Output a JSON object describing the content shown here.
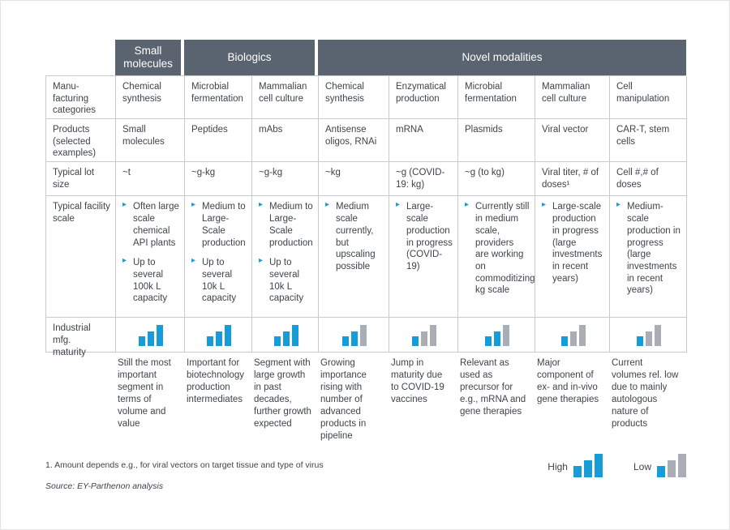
{
  "colors": {
    "header_bg": "#5a6470",
    "accent_blue": "#189cd8",
    "bar_gray": "#a9aeb4",
    "border": "#c6cbd1",
    "text": "#3d444c"
  },
  "icons": {
    "bullet": "▸"
  },
  "header_groups": [
    {
      "label": "Small molecules",
      "span": 1
    },
    {
      "label": "Biologics",
      "span": 2
    },
    {
      "label": "Novel modalities",
      "span": 5
    }
  ],
  "row_labels": {
    "categories": "Manu-\nfacturing\ncategories",
    "products": "Products\n(selected\nexamples)",
    "lot_size": "Typical lot\nsize",
    "facility": "Typical facility\nscale",
    "maturity": "Industrial mfg.\nmaturity"
  },
  "columns": [
    {
      "group": "Small molecules",
      "category": "Chemical synthesis",
      "product": "Small molecules",
      "lot_size": "~t",
      "facility": [
        "Often large scale chemical API plants",
        "Up to several 100k L capacity"
      ],
      "maturity_blue": 3,
      "maturity_total": 3,
      "summary": "Still the most important segment in terms of volume and value"
    },
    {
      "group": "Biologics",
      "category": "Microbial fermentation",
      "product": "Peptides",
      "lot_size": "~g-kg",
      "facility": [
        "Medium to Large-Scale production",
        "Up to several 10k L capacity"
      ],
      "maturity_blue": 3,
      "maturity_total": 3,
      "summary": "Important for biotechnology production intermediates"
    },
    {
      "group": "Biologics",
      "category": "Mammalian cell culture",
      "product": "mAbs",
      "lot_size": "~g-kg",
      "facility": [
        "Medium to Large-Scale production",
        "Up to several 10k L capacity"
      ],
      "maturity_blue": 3,
      "maturity_total": 3,
      "summary": "Segment with large growth in past decades, further growth expected"
    },
    {
      "group": "Novel modalities",
      "category": "Chemical synthesis",
      "product": "Antisense oligos, RNAi",
      "lot_size": "~kg",
      "facility": [
        "Medium scale currently, but upscaling possible"
      ],
      "maturity_blue": 2,
      "maturity_total": 3,
      "summary": "Growing importance rising with number of advanced products in pipeline"
    },
    {
      "group": "Novel modalities",
      "category": "Enzymatical production",
      "product": "mRNA",
      "lot_size": "~g (COVID-19: kg)",
      "facility": [
        "Large-scale production in progress (COVID-19)"
      ],
      "maturity_blue": 1,
      "maturity_total": 3,
      "summary": "Jump in maturity due to COVID-19 vaccines"
    },
    {
      "group": "Novel modalities",
      "category": "Microbial fermentation",
      "product": "Plasmids",
      "lot_size": "~g (to kg)",
      "facility": [
        "Currently still in medium scale, providers are working on commoditizing kg scale"
      ],
      "maturity_blue": 2,
      "maturity_total": 3,
      "summary": "Relevant as used as precursor for e.g., mRNA and gene therapies"
    },
    {
      "group": "Novel modalities",
      "category": "Mammalian cell culture",
      "product": "Viral vector",
      "lot_size": "Viral titer, # of doses¹",
      "facility": [
        "Large-scale production in progress (large investments in recent years)"
      ],
      "maturity_blue": 1,
      "maturity_total": 3,
      "summary": "Major component of ex- and in-vivo gene therapies"
    },
    {
      "group": "Novel modalities",
      "category": "Cell manipulation",
      "product": "CAR-T, stem cells",
      "lot_size": "Cell #,# of doses",
      "facility": [
        "Medium-scale production in progress (large investments in recent years)"
      ],
      "maturity_blue": 1,
      "maturity_total": 3,
      "summary": "Current volumes rel. low due to mainly autologous nature of products"
    }
  ],
  "legend": {
    "high_label": "High",
    "high_blue": 3,
    "low_label": "Low",
    "low_blue": 1,
    "bars_total": 3
  },
  "footnote": "1. Amount depends e.g., for viral vectors on target tissue and type of virus",
  "source": "Source: EY-Parthenon analysis"
}
